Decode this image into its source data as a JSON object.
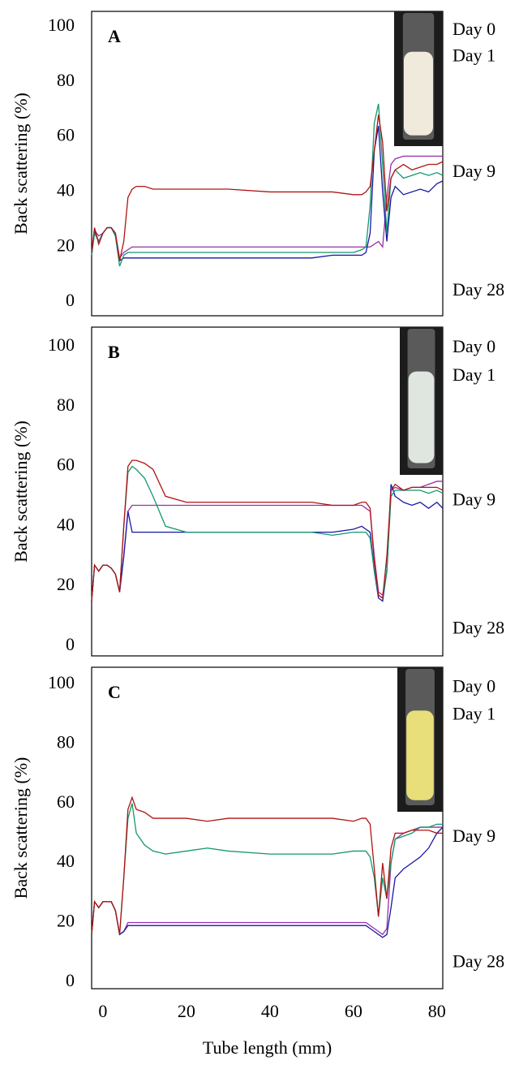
{
  "chart_data": [
    {
      "type": "line",
      "title": "A",
      "ylabel": "Back scattering (%)",
      "x": [
        -2.7,
        -2,
        -1,
        0,
        1,
        2,
        3,
        4,
        5,
        6,
        7,
        8,
        10,
        12,
        15,
        20,
        25,
        30,
        40,
        50,
        55,
        60,
        62,
        63,
        64,
        65,
        66,
        67,
        68,
        69,
        70,
        72,
        74,
        76,
        78,
        80,
        81.4
      ],
      "xlim": [
        -2.7,
        81.4
      ],
      "ylim": [
        -5,
        105.6
      ],
      "yticks": [
        0,
        20,
        40,
        60,
        80,
        100
      ],
      "series": [
        {
          "name": "Day 0",
          "color": "#9a2fa6",
          "values": [
            18,
            26,
            24,
            25,
            27,
            27,
            25,
            16,
            18,
            19,
            20,
            20,
            20,
            20,
            20,
            20,
            20,
            20,
            20,
            20,
            20,
            20,
            20,
            20,
            20,
            21,
            22,
            20,
            38,
            50,
            52,
            53,
            53,
            53,
            53,
            53,
            53
          ]
        },
        {
          "name": "Day 1",
          "color": "#1717a6",
          "values": [
            17,
            26,
            22,
            25,
            27,
            27,
            24,
            15,
            16,
            16,
            16,
            16,
            16,
            16,
            16,
            16,
            16,
            16,
            16,
            16,
            17,
            17,
            17,
            18,
            25,
            55,
            64,
            40,
            22,
            38,
            42,
            39,
            40,
            41,
            40,
            43,
            44
          ]
        },
        {
          "name": "Day 9",
          "color": "#12986c",
          "values": [
            17,
            25,
            22,
            25,
            27,
            27,
            24,
            13,
            17,
            18,
            18,
            18,
            18,
            18,
            18,
            18,
            18,
            18,
            18,
            18,
            18,
            18,
            19,
            20,
            35,
            65,
            72,
            50,
            25,
            45,
            48,
            45,
            46,
            47,
            46,
            47,
            46
          ]
        },
        {
          "name": "Day 28",
          "color": "#b01414",
          "values": [
            18,
            27,
            21,
            25,
            27,
            27,
            25,
            15,
            22,
            38,
            41,
            42,
            42,
            41,
            41,
            41,
            41,
            41,
            40,
            40,
            40,
            39,
            39,
            40,
            42,
            55,
            68,
            58,
            33,
            45,
            48,
            50,
            48,
            49,
            50,
            50,
            51
          ]
        }
      ]
    },
    {
      "type": "line",
      "title": "B",
      "ylabel": "Back scattering (%)",
      "x": [
        -2.7,
        -2,
        -1,
        0,
        1,
        2,
        3,
        4,
        5,
        6,
        7,
        8,
        10,
        12,
        15,
        20,
        25,
        30,
        40,
        50,
        55,
        60,
        62,
        63,
        64,
        65,
        66,
        67,
        68,
        69,
        70,
        72,
        74,
        76,
        78,
        80,
        81.4
      ],
      "xlim": [
        -2.7,
        81.4
      ],
      "ylim": [
        -3.3,
        106.5
      ],
      "yticks": [
        0,
        20,
        40,
        60,
        80,
        100
      ],
      "series": [
        {
          "name": "Day 0",
          "color": "#9a2fa6",
          "values": [
            15,
            27,
            25,
            27,
            27,
            26,
            24,
            18,
            30,
            45,
            47,
            47,
            47,
            47,
            47,
            47,
            47,
            47,
            47,
            47,
            47,
            47,
            47,
            46,
            45,
            30,
            18,
            17,
            25,
            52,
            53,
            52,
            53,
            53,
            54,
            55,
            55
          ]
        },
        {
          "name": "Day 1",
          "color": "#1717a6",
          "values": [
            15,
            27,
            25,
            27,
            27,
            26,
            24,
            18,
            30,
            45,
            38,
            38,
            38,
            38,
            38,
            38,
            38,
            38,
            38,
            38,
            38,
            39,
            40,
            39,
            38,
            25,
            16,
            15,
            25,
            54,
            50,
            48,
            47,
            48,
            46,
            48,
            46
          ]
        },
        {
          "name": "Day 9",
          "color": "#12986c",
          "values": [
            15,
            27,
            25,
            27,
            27,
            26,
            24,
            18,
            40,
            58,
            60,
            59,
            56,
            50,
            40,
            38,
            38,
            38,
            38,
            38,
            37,
            38,
            38,
            38,
            36,
            25,
            17,
            16,
            25,
            50,
            52,
            52,
            52,
            52,
            51,
            52,
            51
          ]
        },
        {
          "name": "Day 28",
          "color": "#b01414",
          "values": [
            15,
            27,
            25,
            27,
            27,
            26,
            24,
            18,
            40,
            60,
            62,
            62,
            61,
            59,
            50,
            48,
            48,
            48,
            48,
            48,
            47,
            47,
            48,
            48,
            46,
            28,
            17,
            16,
            30,
            52,
            54,
            52,
            53,
            53,
            53,
            53,
            52
          ]
        }
      ]
    },
    {
      "type": "line",
      "title": "C",
      "ylabel": "Back scattering (%)",
      "xlabel": "Tube length (mm)",
      "x": [
        -2.7,
        -2,
        -1,
        0,
        1,
        2,
        3,
        4,
        5,
        6,
        7,
        8,
        10,
        12,
        15,
        20,
        25,
        30,
        40,
        50,
        55,
        60,
        62,
        63,
        64,
        65,
        66,
        67,
        68,
        69,
        70,
        72,
        74,
        76,
        78,
        80,
        81.4
      ],
      "xlim": [
        -2.7,
        81.4
      ],
      "xticks": [
        0,
        20,
        40,
        60,
        80
      ],
      "ylim": [
        -2.2,
        105.7
      ],
      "yticks": [
        0,
        20,
        40,
        60,
        80,
        100
      ],
      "series": [
        {
          "name": "Day 0",
          "color": "#9a2fa6",
          "values": [
            16,
            27,
            25,
            27,
            27,
            27,
            24,
            16,
            17,
            20,
            20,
            20,
            20,
            20,
            20,
            20,
            20,
            20,
            20,
            20,
            20,
            20,
            20,
            20,
            19,
            18,
            17,
            16,
            18,
            40,
            48,
            50,
            51,
            52,
            52,
            52,
            52
          ]
        },
        {
          "name": "Day 1",
          "color": "#1717a6",
          "values": [
            16,
            27,
            25,
            27,
            27,
            27,
            24,
            16,
            17,
            19,
            19,
            19,
            19,
            19,
            19,
            19,
            19,
            19,
            19,
            19,
            19,
            19,
            19,
            19,
            18,
            17,
            16,
            15,
            16,
            25,
            35,
            38,
            40,
            42,
            45,
            50,
            52
          ]
        },
        {
          "name": "Day 9",
          "color": "#12986c",
          "values": [
            16,
            27,
            25,
            27,
            27,
            27,
            24,
            16,
            35,
            55,
            60,
            50,
            46,
            44,
            43,
            44,
            45,
            44,
            43,
            43,
            43,
            44,
            44,
            44,
            42,
            35,
            22,
            35,
            28,
            40,
            48,
            49,
            50,
            52,
            52,
            53,
            53
          ]
        },
        {
          "name": "Day 28",
          "color": "#b01414",
          "values": [
            16,
            27,
            25,
            27,
            27,
            27,
            24,
            16,
            35,
            58,
            62,
            58,
            57,
            55,
            55,
            55,
            54,
            55,
            55,
            55,
            55,
            54,
            55,
            55,
            53,
            38,
            22,
            40,
            28,
            45,
            50,
            50,
            51,
            51,
            51,
            50,
            50
          ]
        }
      ]
    }
  ]
}
